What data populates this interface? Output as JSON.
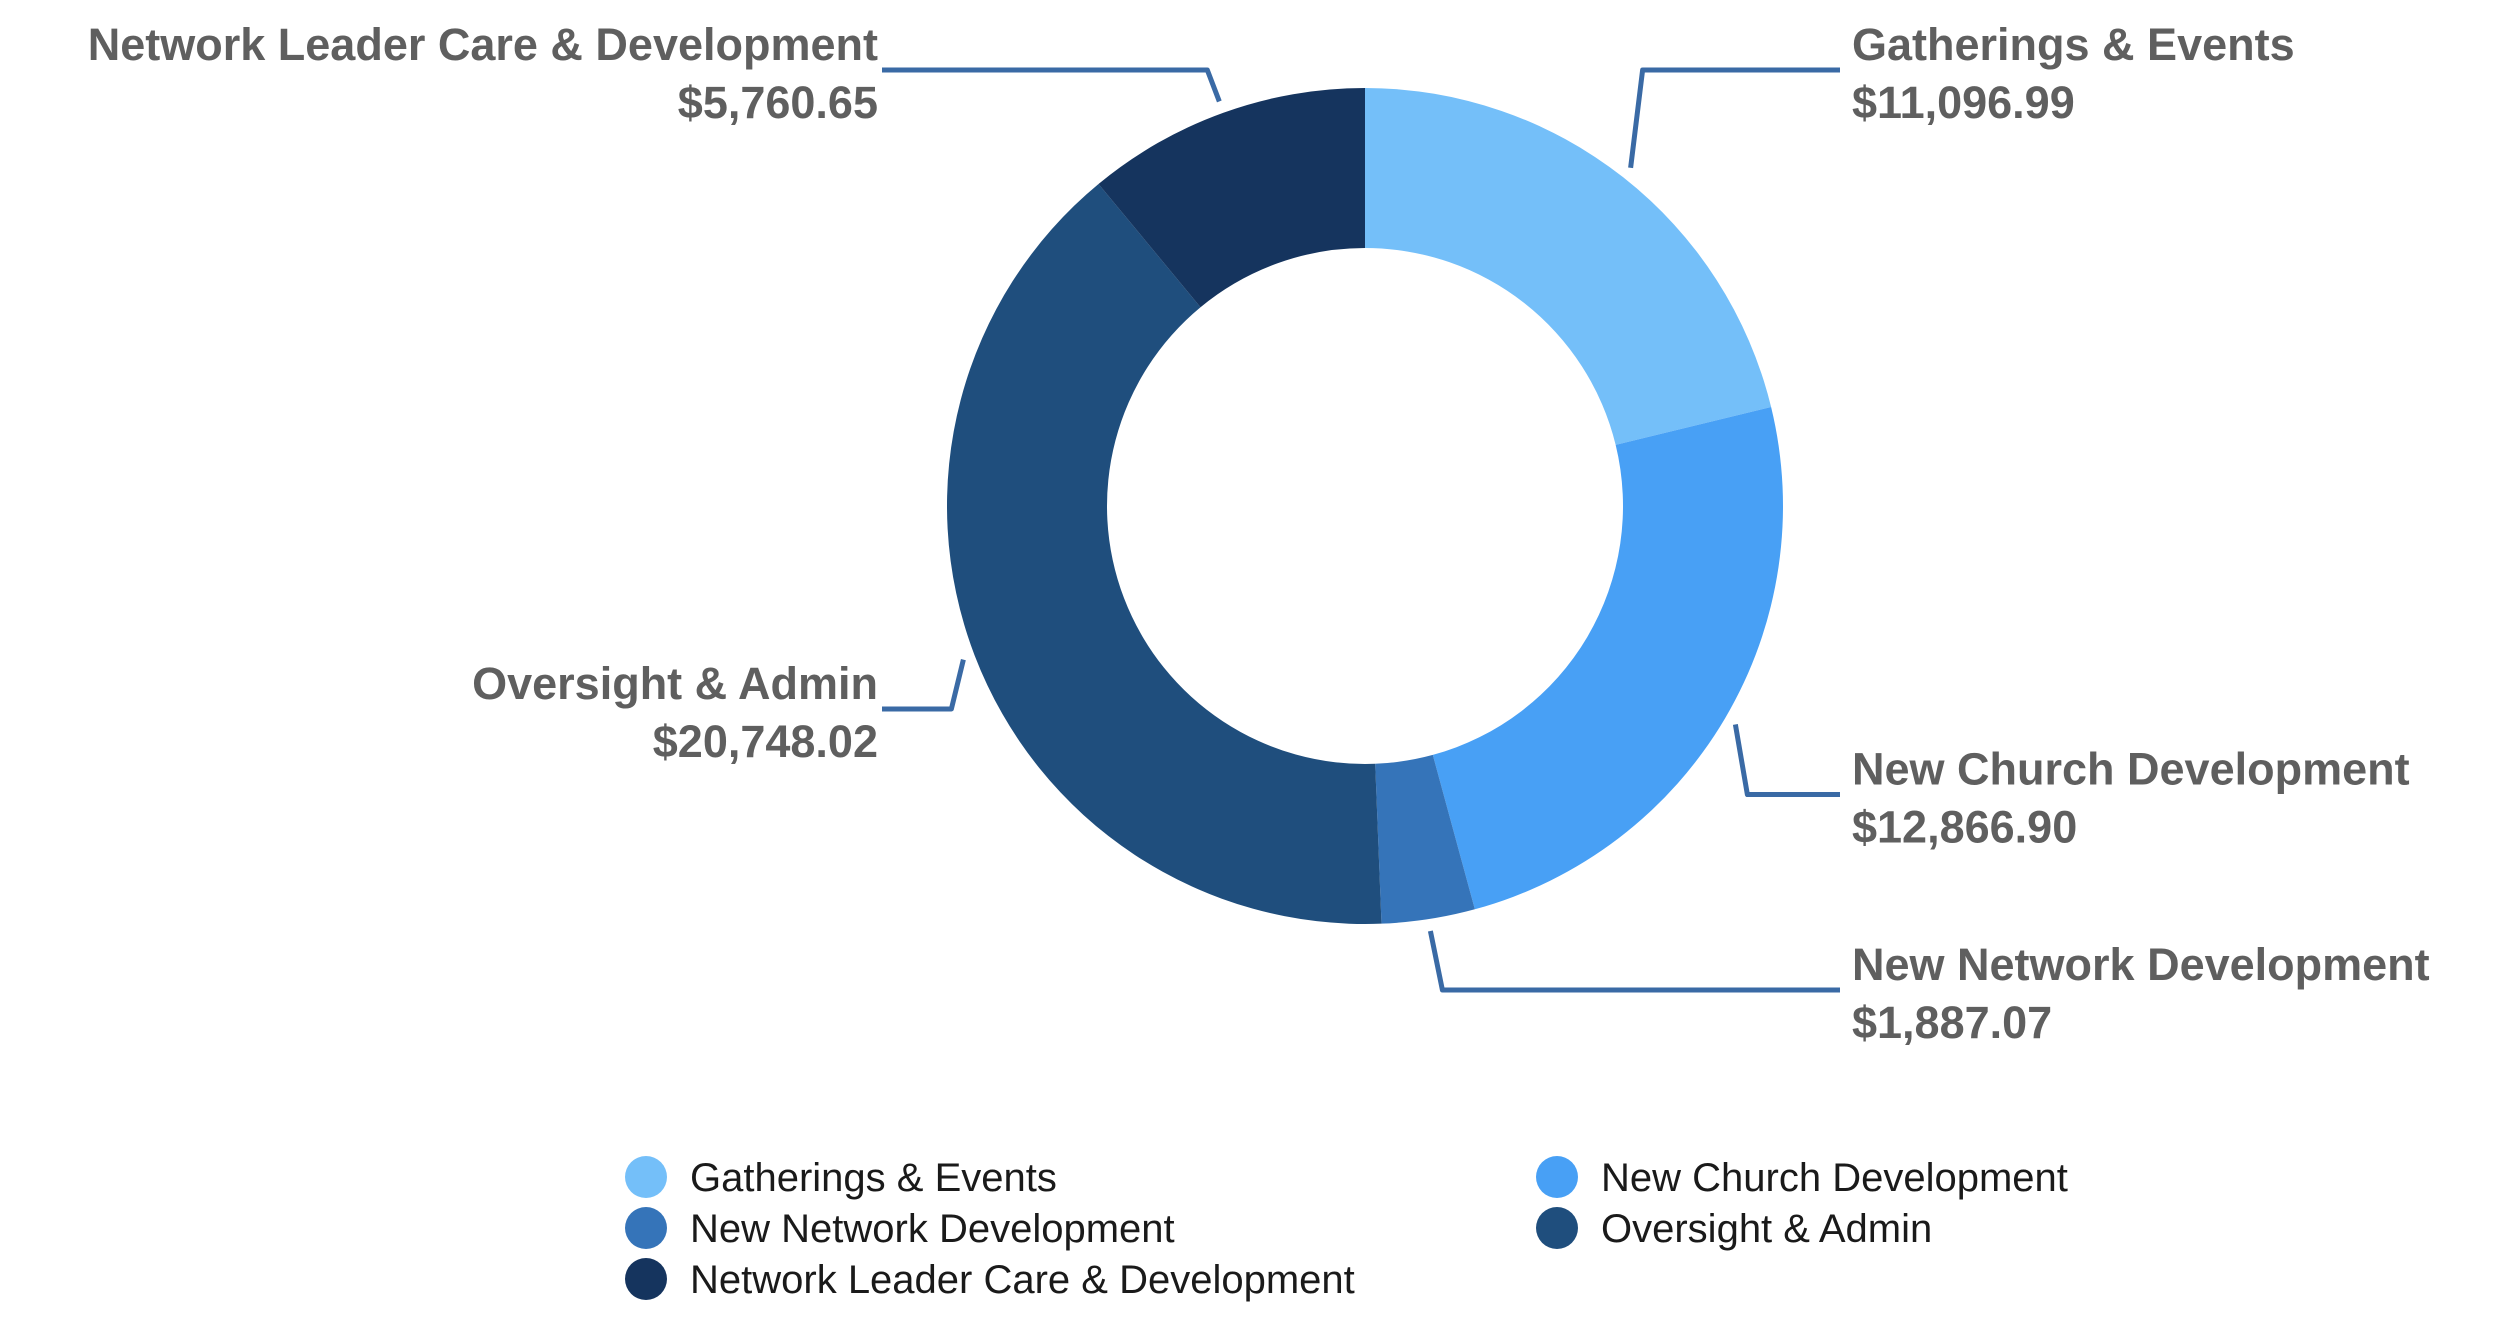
{
  "chart_data": {
    "type": "pie",
    "variant": "donut",
    "title": "",
    "categories": [
      "Gatherings & Events",
      "New Church Development",
      "New Network Development",
      "Oversight & Admin",
      "Network Leader Care & Development"
    ],
    "values": [
      11096.99,
      12866.9,
      1887.07,
      20748.02,
      5760.65
    ],
    "value_labels": [
      "$11,096.99",
      "$12,866.90",
      "$1,887.07",
      "$20,748.02",
      "$5,760.65"
    ],
    "colors": [
      "#74bff9",
      "#48a0f5",
      "#3574b9",
      "#1f4e7d",
      "#15345e"
    ],
    "legend": {
      "placement": "bottom",
      "entries": [
        "Gatherings & Events",
        "New Church Development",
        "New Network Development",
        "Oversight & Admin",
        "Network Leader Care & Development"
      ]
    },
    "leader_line_color": "#3a6aa5"
  }
}
